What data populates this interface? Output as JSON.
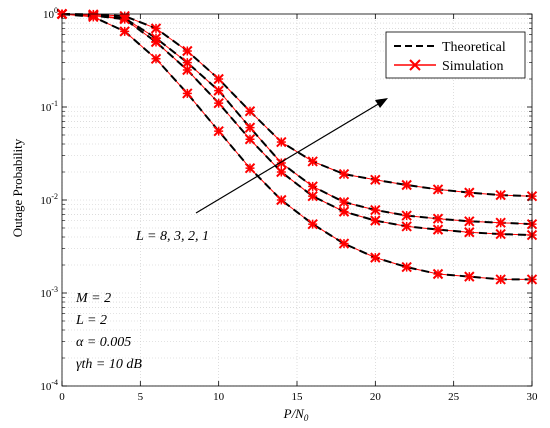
{
  "chart_data": {
    "type": "line",
    "title": "",
    "xlabel": "P/N0",
    "ylabel": "Outage Probability",
    "xlim": [
      0,
      30
    ],
    "ylim": [
      0.0001,
      1
    ],
    "yscale": "log",
    "grid": true,
    "xticks": [
      "0",
      "5",
      "10",
      "15",
      "20",
      "25",
      "30"
    ],
    "yticks": [
      {
        "base": "10",
        "exp": "0",
        "value": 1
      },
      {
        "base": "10",
        "exp": "-1",
        "value": 0.1
      },
      {
        "base": "10",
        "exp": "-2",
        "value": 0.01
      },
      {
        "base": "10",
        "exp": "-3",
        "value": 0.001
      },
      {
        "base": "10",
        "exp": "-4",
        "value": 0.0001
      }
    ],
    "legend": {
      "placement": "top-right",
      "entries": [
        {
          "label": "Theoretical",
          "style": "dashed-line"
        },
        {
          "label": "Simulation",
          "style": "red-x-marker-line"
        }
      ]
    },
    "annotation": {
      "text": "L = 8, 3, 2, 1"
    },
    "parameters": [
      "M = 2",
      "L = 2",
      "α = 0.005",
      "γth = 10 dB"
    ],
    "x": [
      0,
      2,
      4,
      6,
      8,
      10,
      12,
      14,
      16,
      18,
      20,
      22,
      24,
      26,
      28,
      30
    ],
    "series": [
      {
        "values": [
          1.0,
          0.99,
          0.95,
          0.7,
          0.4,
          0.2,
          0.09,
          0.042,
          0.026,
          0.019,
          0.0165,
          0.0145,
          0.013,
          0.012,
          0.0113,
          0.011
        ]
      },
      {
        "values": [
          1.0,
          0.97,
          0.9,
          0.55,
          0.3,
          0.15,
          0.06,
          0.025,
          0.014,
          0.0095,
          0.0078,
          0.0068,
          0.0063,
          0.0059,
          0.0057,
          0.0055
        ]
      },
      {
        "values": [
          1.0,
          0.96,
          0.88,
          0.5,
          0.25,
          0.11,
          0.045,
          0.02,
          0.011,
          0.0075,
          0.006,
          0.0052,
          0.0048,
          0.0045,
          0.0043,
          0.0042
        ]
      },
      {
        "values": [
          1.0,
          0.93,
          0.65,
          0.33,
          0.14,
          0.055,
          0.022,
          0.01,
          0.0055,
          0.0034,
          0.0024,
          0.0019,
          0.0016,
          0.0015,
          0.0014,
          0.0014
        ]
      }
    ],
    "colors": {
      "theory": "#000000",
      "simulation": "#ff0000",
      "grid": "#c8c8c8"
    }
  }
}
